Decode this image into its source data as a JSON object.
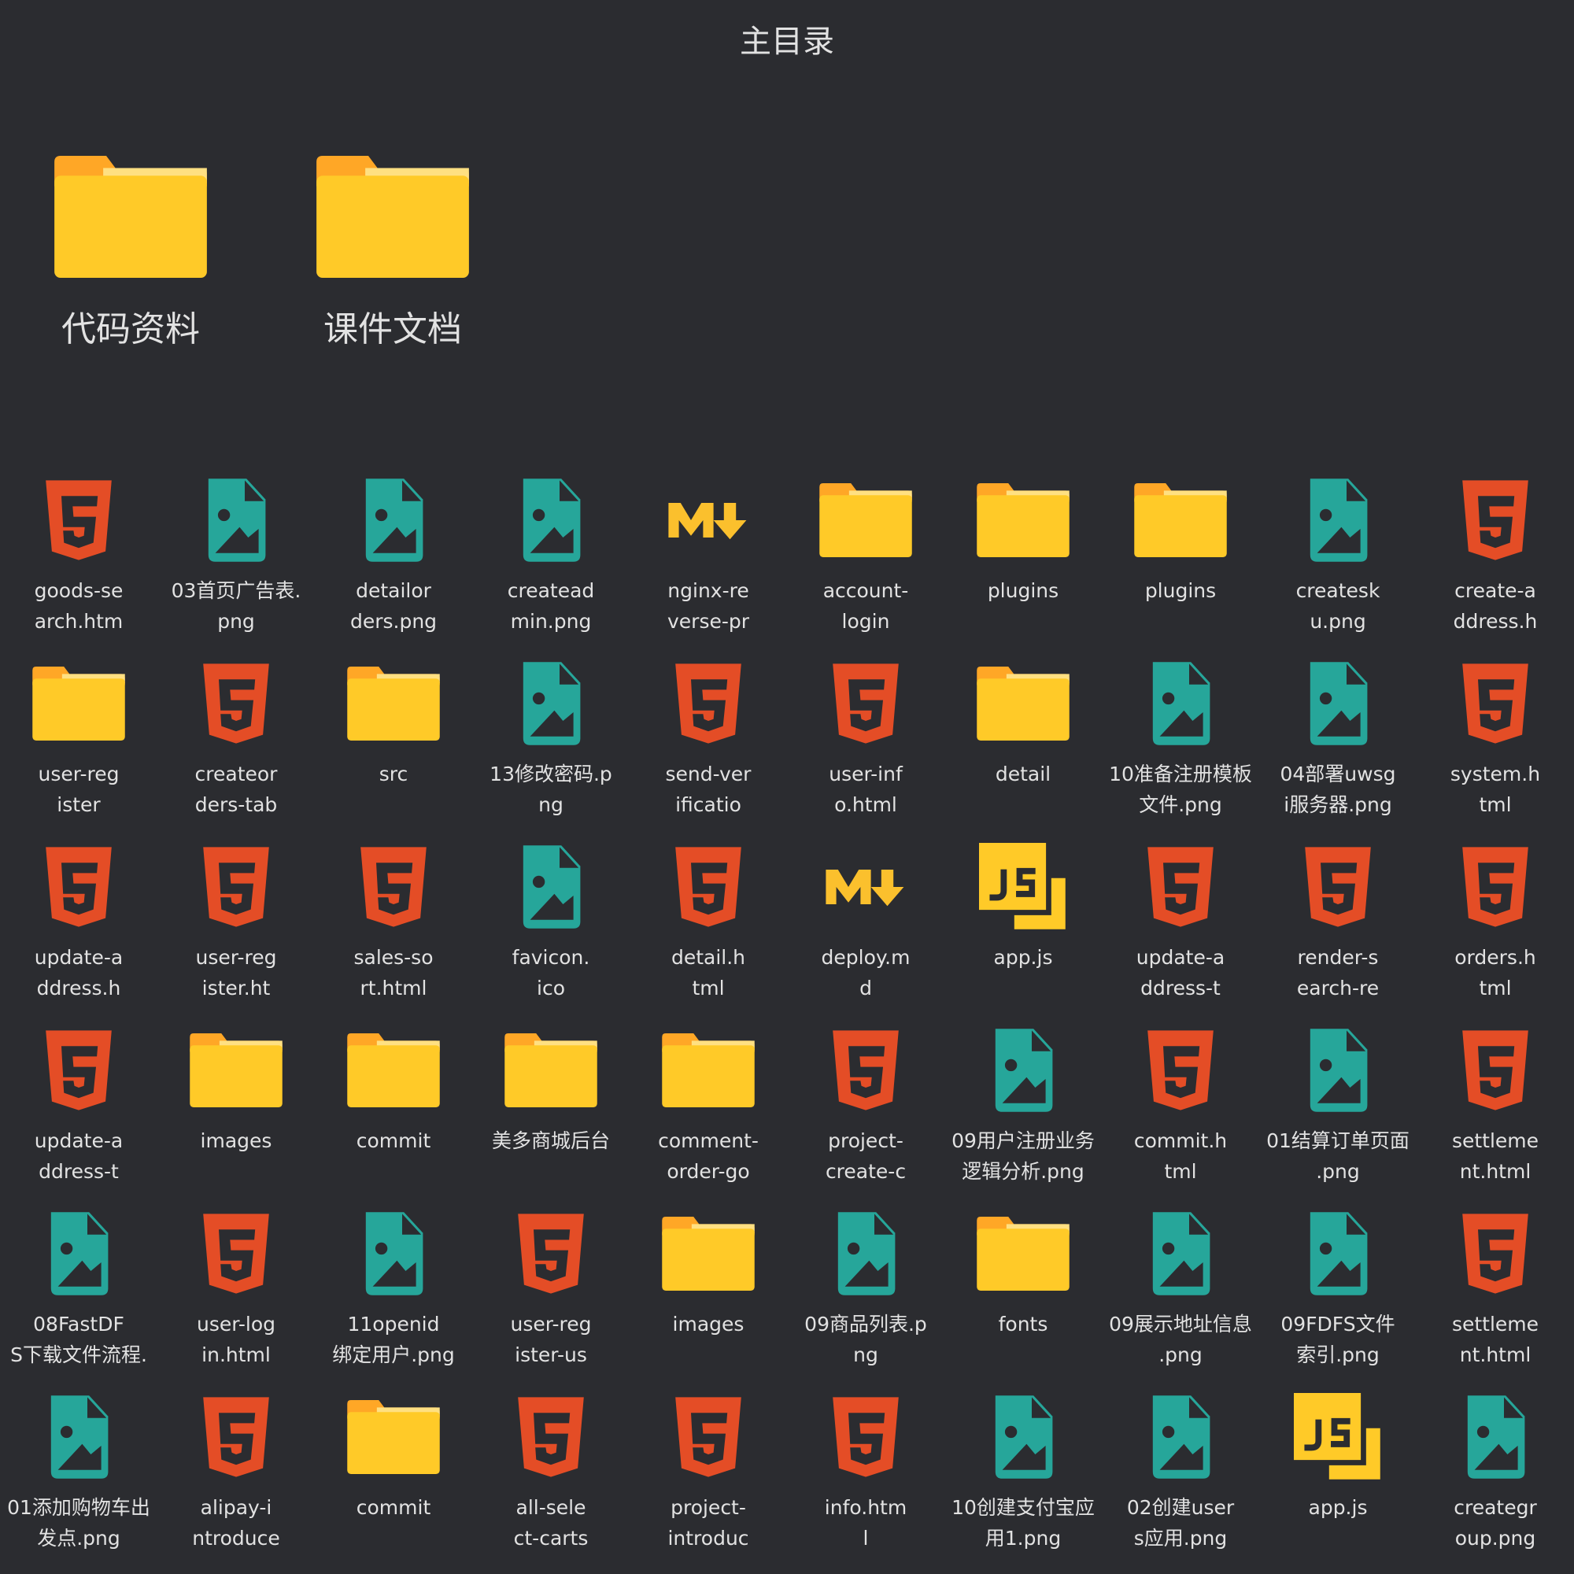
{
  "title": "主目录",
  "folders": [
    {
      "label": "代码资料"
    },
    {
      "label": "课件文档"
    }
  ],
  "items": [
    {
      "type": "html",
      "lines": [
        "goods-se",
        "arch.htm"
      ]
    },
    {
      "type": "png",
      "lines": [
        "03首页广告表.",
        "png"
      ]
    },
    {
      "type": "png",
      "lines": [
        "detailor",
        "ders.png"
      ]
    },
    {
      "type": "png",
      "lines": [
        "createad",
        "min.png"
      ]
    },
    {
      "type": "md",
      "lines": [
        "nginx-re",
        "verse-pr"
      ]
    },
    {
      "type": "folder",
      "lines": [
        "account-",
        "login"
      ]
    },
    {
      "type": "folder",
      "lines": [
        "plugins"
      ]
    },
    {
      "type": "folder",
      "lines": [
        "plugins"
      ]
    },
    {
      "type": "png",
      "lines": [
        "createsk",
        "u.png"
      ]
    },
    {
      "type": "html",
      "lines": [
        "create-a",
        "ddress.h"
      ]
    },
    {
      "type": "folder",
      "lines": [
        "user-reg",
        "ister"
      ]
    },
    {
      "type": "html",
      "lines": [
        "createor",
        "ders-tab"
      ]
    },
    {
      "type": "folder",
      "lines": [
        "src"
      ]
    },
    {
      "type": "png",
      "lines": [
        "13修改密码.p",
        "ng"
      ]
    },
    {
      "type": "html",
      "lines": [
        "send-ver",
        "ificatio"
      ]
    },
    {
      "type": "html",
      "lines": [
        "user-inf",
        "o.html"
      ]
    },
    {
      "type": "folder",
      "lines": [
        "detail"
      ]
    },
    {
      "type": "png",
      "lines": [
        "10准备注册模板",
        "文件.png"
      ]
    },
    {
      "type": "png",
      "lines": [
        "04部署uwsg",
        "i服务器.png"
      ]
    },
    {
      "type": "html",
      "lines": [
        "system.h",
        "tml"
      ]
    },
    {
      "type": "html",
      "lines": [
        "update-a",
        "ddress.h"
      ]
    },
    {
      "type": "html",
      "lines": [
        "user-reg",
        "ister.ht"
      ]
    },
    {
      "type": "html",
      "lines": [
        "sales-so",
        "rt.html"
      ]
    },
    {
      "type": "png",
      "lines": [
        "favicon.",
        "ico"
      ]
    },
    {
      "type": "html",
      "lines": [
        "detail.h",
        "tml"
      ]
    },
    {
      "type": "md",
      "lines": [
        "deploy.m",
        "d"
      ]
    },
    {
      "type": "js",
      "lines": [
        "app.js"
      ]
    },
    {
      "type": "html",
      "lines": [
        "update-a",
        "ddress-t"
      ]
    },
    {
      "type": "html",
      "lines": [
        "render-s",
        "earch-re"
      ]
    },
    {
      "type": "html",
      "lines": [
        "orders.h",
        "tml"
      ]
    },
    {
      "type": "html",
      "lines": [
        "update-a",
        "ddress-t"
      ]
    },
    {
      "type": "folder",
      "lines": [
        "images"
      ]
    },
    {
      "type": "folder",
      "lines": [
        "commit"
      ]
    },
    {
      "type": "folder",
      "lines": [
        "美多商城后台"
      ]
    },
    {
      "type": "folder",
      "lines": [
        "comment-",
        "order-go"
      ]
    },
    {
      "type": "html",
      "lines": [
        "project-",
        "create-c"
      ]
    },
    {
      "type": "png",
      "lines": [
        "09用户注册业务",
        "逻辑分析.png"
      ]
    },
    {
      "type": "html",
      "lines": [
        "commit.h",
        "tml"
      ]
    },
    {
      "type": "png",
      "lines": [
        "01结算订单页面",
        ".png"
      ]
    },
    {
      "type": "html",
      "lines": [
        "settleme",
        "nt.html"
      ]
    },
    {
      "type": "png",
      "lines": [
        "08FastDF",
        "S下载文件流程."
      ]
    },
    {
      "type": "html",
      "lines": [
        "user-log",
        "in.html"
      ]
    },
    {
      "type": "png",
      "lines": [
        "11openid",
        "绑定用户.png"
      ]
    },
    {
      "type": "html",
      "lines": [
        "user-reg",
        "ister-us"
      ]
    },
    {
      "type": "folder",
      "lines": [
        "images"
      ]
    },
    {
      "type": "png",
      "lines": [
        "09商品列表.p",
        "ng"
      ]
    },
    {
      "type": "folder",
      "lines": [
        "fonts"
      ]
    },
    {
      "type": "png",
      "lines": [
        "09展示地址信息",
        ".png"
      ]
    },
    {
      "type": "png",
      "lines": [
        "09FDFS文件",
        "索引.png"
      ]
    },
    {
      "type": "html",
      "lines": [
        "settleme",
        "nt.html"
      ]
    },
    {
      "type": "png",
      "lines": [
        "01添加购物车出",
        "发点.png"
      ]
    },
    {
      "type": "html",
      "lines": [
        "alipay-i",
        "ntroduce"
      ]
    },
    {
      "type": "folder",
      "lines": [
        "commit"
      ]
    },
    {
      "type": "html",
      "lines": [
        "all-sele",
        "ct-carts"
      ]
    },
    {
      "type": "html",
      "lines": [
        "project-",
        "introduc"
      ]
    },
    {
      "type": "html",
      "lines": [
        "info.htm",
        "l"
      ]
    },
    {
      "type": "png",
      "lines": [
        "10创建支付宝应",
        "用1.png"
      ]
    },
    {
      "type": "png",
      "lines": [
        "02创建user",
        "s应用.png"
      ]
    },
    {
      "type": "js",
      "lines": [
        "app.js"
      ]
    },
    {
      "type": "png",
      "lines": [
        "creategr",
        "oup.png"
      ]
    }
  ]
}
